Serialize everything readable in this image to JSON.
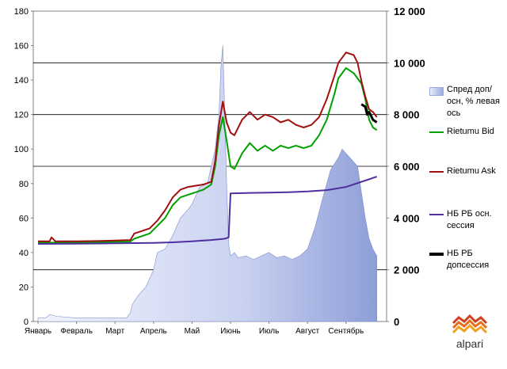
{
  "chart_data": {
    "type": "line",
    "title": "",
    "x_categories": [
      "Январь",
      "Февраль",
      "Март",
      "Апрель",
      "Май",
      "Июнь",
      "Июль",
      "Август",
      "Сентябрь"
    ],
    "left_axis": {
      "ylim": [
        0,
        180
      ],
      "ticks": [
        0,
        20,
        40,
        60,
        80,
        100,
        120,
        140,
        160,
        180
      ]
    },
    "right_axis": {
      "ylim": [
        0,
        12000
      ],
      "ticks": [
        "0",
        "2 000",
        "4 000",
        "6 000",
        "8 000",
        "10 000",
        "12 000"
      ],
      "tick_values": [
        0,
        2000,
        4000,
        6000,
        8000,
        10000,
        12000
      ]
    },
    "x_range_months": [
      0,
      8.8
    ],
    "grid": "horizontal lines at right-axis 6000, 8000, 10000 and left-axis 30",
    "series": [
      {
        "name": "Спред доп/осн, % левая ось",
        "axis": "left",
        "kind": "area",
        "color": "#9fb0e0",
        "points": [
          [
            0,
            2
          ],
          [
            0.2,
            2
          ],
          [
            0.3,
            4
          ],
          [
            0.5,
            3
          ],
          [
            1,
            2
          ],
          [
            1.5,
            2
          ],
          [
            2,
            2
          ],
          [
            2.3,
            2
          ],
          [
            2.4,
            5
          ],
          [
            2.45,
            10
          ],
          [
            2.6,
            15
          ],
          [
            2.8,
            20
          ],
          [
            3,
            30
          ],
          [
            3.1,
            40
          ],
          [
            3.3,
            42
          ],
          [
            3.5,
            50
          ],
          [
            3.7,
            60
          ],
          [
            3.9,
            65
          ],
          [
            4,
            68
          ],
          [
            4.2,
            78
          ],
          [
            4.4,
            80
          ],
          [
            4.6,
            100
          ],
          [
            4.7,
            120
          ],
          [
            4.75,
            148
          ],
          [
            4.8,
            160
          ],
          [
            4.85,
            120
          ],
          [
            4.9,
            80
          ],
          [
            4.95,
            45
          ],
          [
            5,
            38
          ],
          [
            5.1,
            40
          ],
          [
            5.2,
            37
          ],
          [
            5.4,
            38
          ],
          [
            5.6,
            36
          ],
          [
            5.8,
            38
          ],
          [
            6,
            40
          ],
          [
            6.2,
            37
          ],
          [
            6.4,
            38
          ],
          [
            6.6,
            36
          ],
          [
            6.8,
            38
          ],
          [
            7,
            42
          ],
          [
            7.2,
            55
          ],
          [
            7.4,
            72
          ],
          [
            7.6,
            88
          ],
          [
            7.8,
            95
          ],
          [
            7.9,
            100
          ],
          [
            8.1,
            95
          ],
          [
            8.3,
            90
          ],
          [
            8.4,
            75
          ],
          [
            8.5,
            60
          ],
          [
            8.6,
            48
          ],
          [
            8.7,
            42
          ],
          [
            8.8,
            38
          ]
        ]
      },
      {
        "name": "Rietumu Bid",
        "axis": "right",
        "kind": "line",
        "color": "#00a000",
        "points": [
          [
            0,
            3050
          ],
          [
            0.5,
            3050
          ],
          [
            1,
            3060
          ],
          [
            1.5,
            3070
          ],
          [
            2,
            3080
          ],
          [
            2.4,
            3090
          ],
          [
            2.5,
            3200
          ],
          [
            2.7,
            3300
          ],
          [
            2.9,
            3400
          ],
          [
            3.1,
            3700
          ],
          [
            3.3,
            4000
          ],
          [
            3.5,
            4500
          ],
          [
            3.7,
            4800
          ],
          [
            3.9,
            4900
          ],
          [
            4.1,
            5000
          ],
          [
            4.3,
            5100
          ],
          [
            4.5,
            5300
          ],
          [
            4.6,
            6000
          ],
          [
            4.7,
            7200
          ],
          [
            4.8,
            7900
          ],
          [
            4.9,
            7000
          ],
          [
            5,
            6000
          ],
          [
            5.1,
            5900
          ],
          [
            5.3,
            6500
          ],
          [
            5.5,
            6900
          ],
          [
            5.7,
            6600
          ],
          [
            5.9,
            6800
          ],
          [
            6.1,
            6600
          ],
          [
            6.3,
            6800
          ],
          [
            6.5,
            6700
          ],
          [
            6.7,
            6800
          ],
          [
            6.9,
            6700
          ],
          [
            7.1,
            6800
          ],
          [
            7.3,
            7200
          ],
          [
            7.5,
            7800
          ],
          [
            7.7,
            8800
          ],
          [
            7.8,
            9400
          ],
          [
            8,
            9800
          ],
          [
            8.2,
            9600
          ],
          [
            8.4,
            9200
          ],
          [
            8.5,
            8600
          ],
          [
            8.6,
            7800
          ],
          [
            8.7,
            7500
          ],
          [
            8.8,
            7400
          ]
        ]
      },
      {
        "name": "Rietumu Ask",
        "axis": "right",
        "kind": "line",
        "color": "#a01010",
        "points": [
          [
            0,
            3100
          ],
          [
            0.3,
            3100
          ],
          [
            0.35,
            3250
          ],
          [
            0.45,
            3100
          ],
          [
            1,
            3100
          ],
          [
            1.5,
            3110
          ],
          [
            2,
            3130
          ],
          [
            2.4,
            3150
          ],
          [
            2.5,
            3400
          ],
          [
            2.7,
            3500
          ],
          [
            2.9,
            3600
          ],
          [
            3.1,
            3900
          ],
          [
            3.3,
            4300
          ],
          [
            3.5,
            4800
          ],
          [
            3.7,
            5100
          ],
          [
            3.9,
            5200
          ],
          [
            4.1,
            5250
          ],
          [
            4.3,
            5300
          ],
          [
            4.5,
            5400
          ],
          [
            4.6,
            6200
          ],
          [
            4.7,
            7600
          ],
          [
            4.8,
            8500
          ],
          [
            4.9,
            7700
          ],
          [
            5,
            7300
          ],
          [
            5.1,
            7200
          ],
          [
            5.3,
            7800
          ],
          [
            5.5,
            8100
          ],
          [
            5.7,
            7800
          ],
          [
            5.9,
            8000
          ],
          [
            6.1,
            7900
          ],
          [
            6.3,
            7700
          ],
          [
            6.5,
            7800
          ],
          [
            6.7,
            7600
          ],
          [
            6.9,
            7500
          ],
          [
            7.1,
            7600
          ],
          [
            7.3,
            7900
          ],
          [
            7.5,
            8600
          ],
          [
            7.7,
            9500
          ],
          [
            7.8,
            10000
          ],
          [
            8,
            10400
          ],
          [
            8.2,
            10300
          ],
          [
            8.3,
            10000
          ],
          [
            8.4,
            9300
          ],
          [
            8.5,
            8700
          ],
          [
            8.6,
            8200
          ],
          [
            8.7,
            8100
          ],
          [
            8.8,
            7900
          ]
        ]
      },
      {
        "name": "НБ РБ осн. сессия",
        "axis": "right",
        "kind": "line",
        "color": "#5030a0",
        "points": [
          [
            0,
            3000
          ],
          [
            1,
            3010
          ],
          [
            2,
            3020
          ],
          [
            3,
            3040
          ],
          [
            3.5,
            3060
          ],
          [
            4,
            3100
          ],
          [
            4.5,
            3150
          ],
          [
            4.85,
            3200
          ],
          [
            4.95,
            3250
          ],
          [
            5,
            4950
          ],
          [
            5.5,
            4970
          ],
          [
            6,
            4980
          ],
          [
            6.5,
            5000
          ],
          [
            7,
            5030
          ],
          [
            7.5,
            5080
          ],
          [
            8,
            5200
          ],
          [
            8.5,
            5450
          ],
          [
            8.8,
            5600
          ]
        ]
      },
      {
        "name": "НБ РБ допсессия",
        "axis": "right",
        "kind": "line",
        "color": "#000000",
        "points": [
          [
            8.4,
            8400
          ],
          [
            8.5,
            8300
          ],
          [
            8.55,
            8000
          ],
          [
            8.6,
            8100
          ],
          [
            8.7,
            7800
          ],
          [
            8.8,
            7700
          ]
        ]
      }
    ]
  },
  "legend": {
    "spread": "Спред доп/осн, % левая ось",
    "bid": "Rietumu Bid",
    "ask": "Rietumu Ask",
    "nb_main": "НБ РБ осн. сессия",
    "nb_extra": "НБ РБ допсессия"
  },
  "logo": {
    "text": "alpari"
  }
}
